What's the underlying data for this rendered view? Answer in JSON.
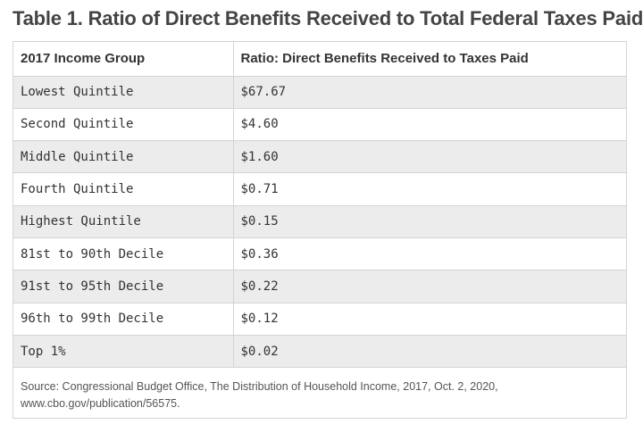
{
  "title": "Table 1. Ratio of Direct Benefits Received to Total Federal Taxes Paid",
  "columns": [
    "2017 Income Group",
    "Ratio: Direct Benefits Received to Taxes Paid"
  ],
  "rows": [
    {
      "group": "Lowest Quintile",
      "ratio": "$67.67"
    },
    {
      "group": "Second Quintile",
      "ratio": "$4.60"
    },
    {
      "group": "Middle Quintile",
      "ratio": "$1.60"
    },
    {
      "group": "Fourth Quintile",
      "ratio": "$0.71"
    },
    {
      "group": "Highest Quintile",
      "ratio": "$0.15"
    },
    {
      "group": "81st to 90th Decile",
      "ratio": "$0.36"
    },
    {
      "group": "91st to 95th Decile",
      "ratio": "$0.22"
    },
    {
      "group": "96th to 99th Decile",
      "ratio": "$0.12"
    },
    {
      "group": "Top 1%",
      "ratio": "$0.02"
    }
  ],
  "source_line1": "Source: Congressional Budget Office, The Distribution of Household Income, 2017, Oct. 2, 2020,",
  "source_line2": "www.cbo.gov/publication/56575.",
  "colors": {
    "shaded_row": "#ececec",
    "border": "#d4d4d4",
    "title": "#444444"
  }
}
